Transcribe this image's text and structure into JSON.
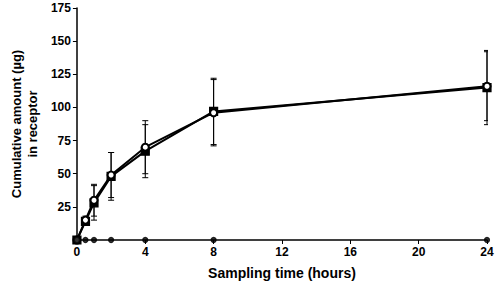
{
  "chart_data": {
    "type": "line",
    "x_label": "Sampling time (hours)",
    "y_label": "Cumulative amount (µg)\nin receptor",
    "x": [
      0,
      0.5,
      1,
      2,
      4,
      8,
      24
    ],
    "xlim": [
      0,
      24
    ],
    "xticks": [
      0,
      4,
      8,
      12,
      16,
      20,
      24
    ],
    "ylim": [
      0,
      175
    ],
    "yticks": [
      25,
      50,
      75,
      100,
      125,
      150,
      175
    ],
    "grid": false,
    "series": [
      {
        "color": "#000000",
        "marker": "square",
        "line_style": "solid",
        "values": [
          0,
          14,
          28,
          48,
          67,
          97,
          115
        ],
        "errors": [
          0,
          3,
          13,
          18,
          20,
          25,
          28
        ]
      },
      {
        "color": "#000000",
        "marker": "open_circle",
        "line_style": "solid",
        "values": [
          0,
          15,
          30,
          49,
          70,
          96,
          116
        ],
        "errors": [
          0,
          3,
          12,
          17,
          20,
          25,
          26
        ]
      },
      {
        "color": "#000000",
        "marker": "circle",
        "type": "scatter",
        "values": [
          0,
          0,
          0,
          0,
          0,
          0,
          0
        ]
      }
    ]
  }
}
